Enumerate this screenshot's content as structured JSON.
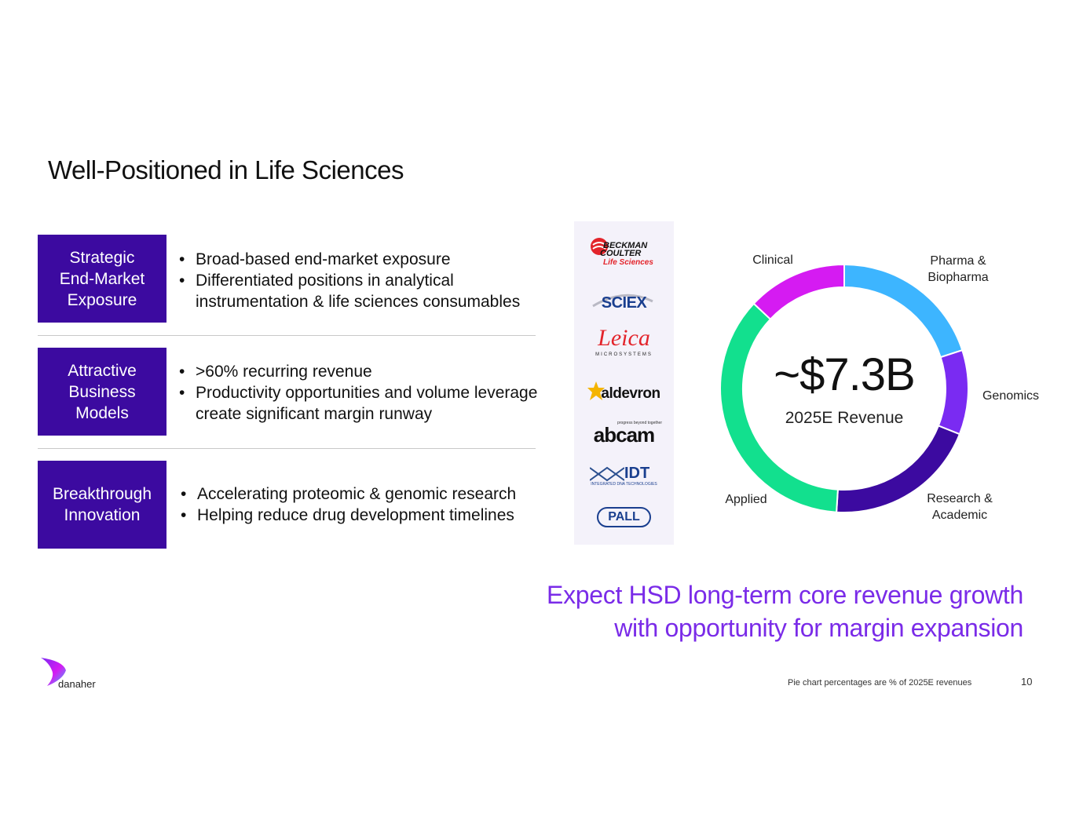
{
  "title": "Well-Positioned in Life Sciences",
  "rows": [
    {
      "label": "Strategic\nEnd-Market\nExposure",
      "bullets": [
        "Broad-based end-market exposure",
        "Differentiated positions in analytical instrumentation & life sciences consumables"
      ]
    },
    {
      "label": "Attractive\nBusiness\nModels",
      "bullets": [
        ">60% recurring revenue",
        "Productivity opportunities and volume leverage create significant margin runway"
      ]
    },
    {
      "label": "Breakthrough\nInnovation",
      "bullets": [
        "Accelerating proteomic & genomic research",
        "Helping reduce drug development timelines"
      ]
    }
  ],
  "logos": {
    "beckman_line1": "BECKMAN",
    "beckman_line2": "COULTER",
    "beckman_line3": "Life Sciences",
    "sciex": "SCIEX",
    "leica": "Leica",
    "leica_sub": "MICROSYSTEMS",
    "aldevron": "aldevron",
    "abcam": "abcam",
    "abcam_tag": "progress beyond together",
    "idt": "IDT",
    "idt_sub": "INTEGRATED DNA TECHNOLOGIES",
    "pall": "PALL"
  },
  "chart_data": {
    "type": "pie",
    "center_value": "~$7.3B",
    "center_label": "2025E Revenue",
    "labels": [
      "Pharma &\nBiopharma",
      "Genomics",
      "Research &\nAcademic",
      "Applied",
      "Clinical"
    ],
    "colors": [
      "#3db5ff",
      "#7a2bf2",
      "#3c0aa0",
      "#12e08e",
      "#d51bf2"
    ],
    "values": [
      20,
      11,
      20,
      36,
      13
    ]
  },
  "tagline_line1": "Expect HSD long-term core revenue growth",
  "tagline_line2": "with opportunity for margin expansion",
  "footnote": "Pie chart percentages are % of 2025E revenues",
  "page_number": "10",
  "brand_name": "danaher"
}
